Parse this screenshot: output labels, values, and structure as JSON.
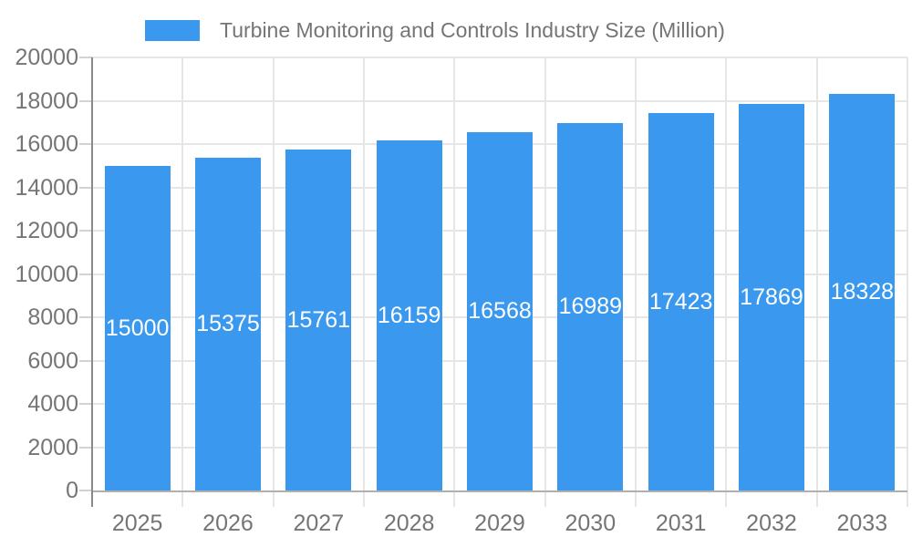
{
  "chart_data": {
    "type": "bar",
    "title": "Turbine Monitoring and Controls Industry Size (Million)",
    "legend": {
      "label": "Turbine Monitoring and Controls Industry Size (Million)",
      "position": "top"
    },
    "categories": [
      "2025",
      "2026",
      "2027",
      "2028",
      "2029",
      "2030",
      "2031",
      "2032",
      "2033"
    ],
    "series": [
      {
        "name": "Turbine Monitoring and Controls Industry Size (Million)",
        "values": [
          15000,
          15375,
          15761,
          16159,
          16568,
          16989,
          17423,
          17869,
          18328
        ]
      }
    ],
    "xlabel": "",
    "ylabel": "",
    "ylim": [
      0,
      20000
    ],
    "ytick_step": 2000,
    "ytick_labels": [
      "0",
      "2000",
      "4000",
      "6000",
      "8000",
      "10000",
      "12000",
      "14000",
      "16000",
      "18000",
      "20000"
    ],
    "grid": true,
    "bar_value_labels_visible": true,
    "colors": {
      "bar": "#3a99ee",
      "label_text": "#757575",
      "bar_value_text": "#ffffff",
      "gridline": "#e6e6e6",
      "axis_line": "#8a8a8a",
      "baseline": "#b0b0b0",
      "tick": "#d2d2d2"
    }
  }
}
